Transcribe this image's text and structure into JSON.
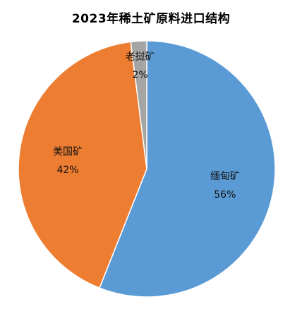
{
  "chart_data": {
    "type": "pie",
    "title": "2023年稀土矿原料进口结构",
    "slices": [
      {
        "name": "缅甸矿",
        "value": 56,
        "percent_label": "56%",
        "color": "#5b9bd5"
      },
      {
        "name": "美国矿",
        "value": 42,
        "percent_label": "42%",
        "color": "#ed7d31"
      },
      {
        "name": "老挝矿",
        "value": 2,
        "percent_label": "2%",
        "color": "#a5a5a5"
      }
    ],
    "start_angle_deg": 0,
    "direction": "clockwise",
    "legend": "none"
  }
}
